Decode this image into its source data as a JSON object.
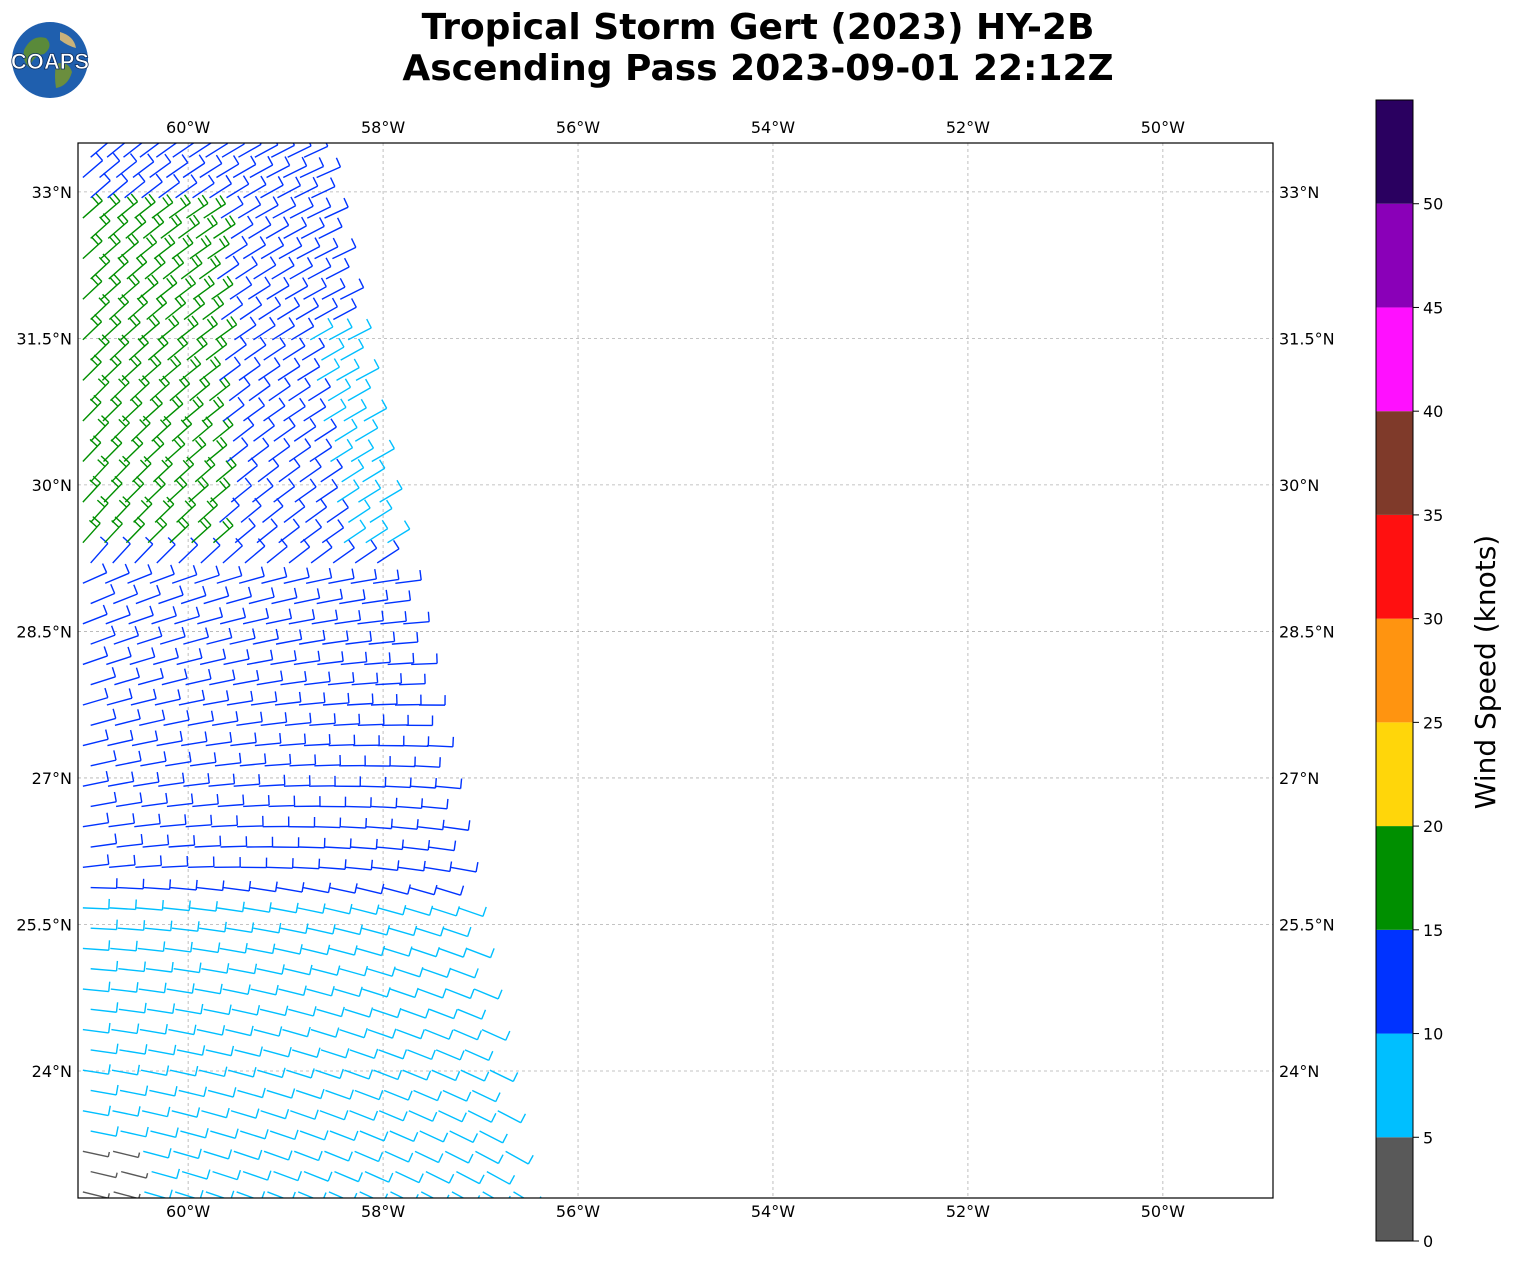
{
  "title_line1": "Tropical Storm Gert (2023) HY-2B",
  "title_line2": "Ascending Pass 2023-09-01 22:12Z",
  "logo_text": "COAPS",
  "map": {
    "lon_ticks": [
      "60°W",
      "58°W",
      "56°W",
      "54°W",
      "52°W",
      "50°W"
    ],
    "lat_ticks": [
      "33°N",
      "31.5°N",
      "30°N",
      "28.5°N",
      "27°N",
      "25.5°N",
      "24°N"
    ],
    "lon_range": [
      -61.13,
      -48.87
    ],
    "lat_range": [
      22.7,
      33.5
    ],
    "grid": "dashed"
  },
  "colorbar": {
    "label": "Wind Speed (knots)",
    "tick_labels": [
      "0",
      "5",
      "10",
      "15",
      "20",
      "25",
      "30",
      "35",
      "40",
      "45",
      "50"
    ],
    "bins": [
      {
        "min": 0,
        "max": 5,
        "color": "#595959"
      },
      {
        "min": 5,
        "max": 10,
        "color": "#00bfff"
      },
      {
        "min": 10,
        "max": 15,
        "color": "#0033ff"
      },
      {
        "min": 15,
        "max": 20,
        "color": "#008f00"
      },
      {
        "min": 20,
        "max": 25,
        "color": "#ffd60a"
      },
      {
        "min": 25,
        "max": 30,
        "color": "#ff9410"
      },
      {
        "min": 30,
        "max": 35,
        "color": "#ff1010"
      },
      {
        "min": 35,
        "max": 40,
        "color": "#7f3a2a"
      },
      {
        "min": 40,
        "max": 45,
        "color": "#ff10ff"
      },
      {
        "min": 45,
        "max": 50,
        "color": "#8a00b8"
      },
      {
        "min": 50,
        "max": 55,
        "color": "#2a0060"
      }
    ]
  },
  "chart_data": {
    "type": "wind-barb-map",
    "swath": {
      "lat_south": 22.7,
      "lat_north": 33.5,
      "west_lon": -61.13,
      "east_lon_at_north": -58.7,
      "east_lon_at_south": -56.6
    },
    "wind_regions": [
      {
        "area": "north-west corner 29.5°N-32.8°N near 60°W-59.7°W",
        "speed_knots": 16,
        "color": "#008f00"
      },
      {
        "area": "main swath 25.3°N-33.5°N",
        "speed_knots": 11,
        "color": "#0033ff"
      },
      {
        "area": "eastern swath edge 29.5°N-31.5°N",
        "speed_knots": 8,
        "color": "#00bfff"
      },
      {
        "area": "southern swath 22.7°N-25.7°N",
        "speed_knots": 7,
        "color": "#00bfff"
      },
      {
        "area": "south-west corner near 61°W 23°N",
        "speed_knots": 3,
        "color": "#595959"
      }
    ]
  }
}
